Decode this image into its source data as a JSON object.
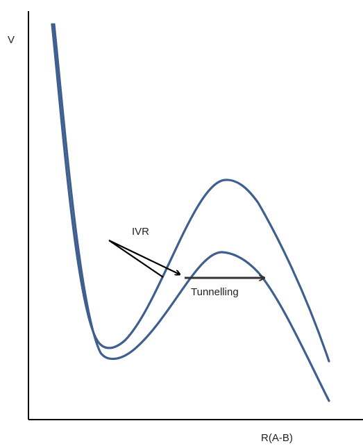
{
  "labels": {
    "y_axis": "V",
    "x_axis": "R(A-B)",
    "ivr": "IVR",
    "tunnelling": "Tunnelling"
  },
  "colors": {
    "curve": "#3f5f8f",
    "axis": "#000000",
    "ivr_arrow": "#000000",
    "tunnel_arrow": "#333333"
  }
}
